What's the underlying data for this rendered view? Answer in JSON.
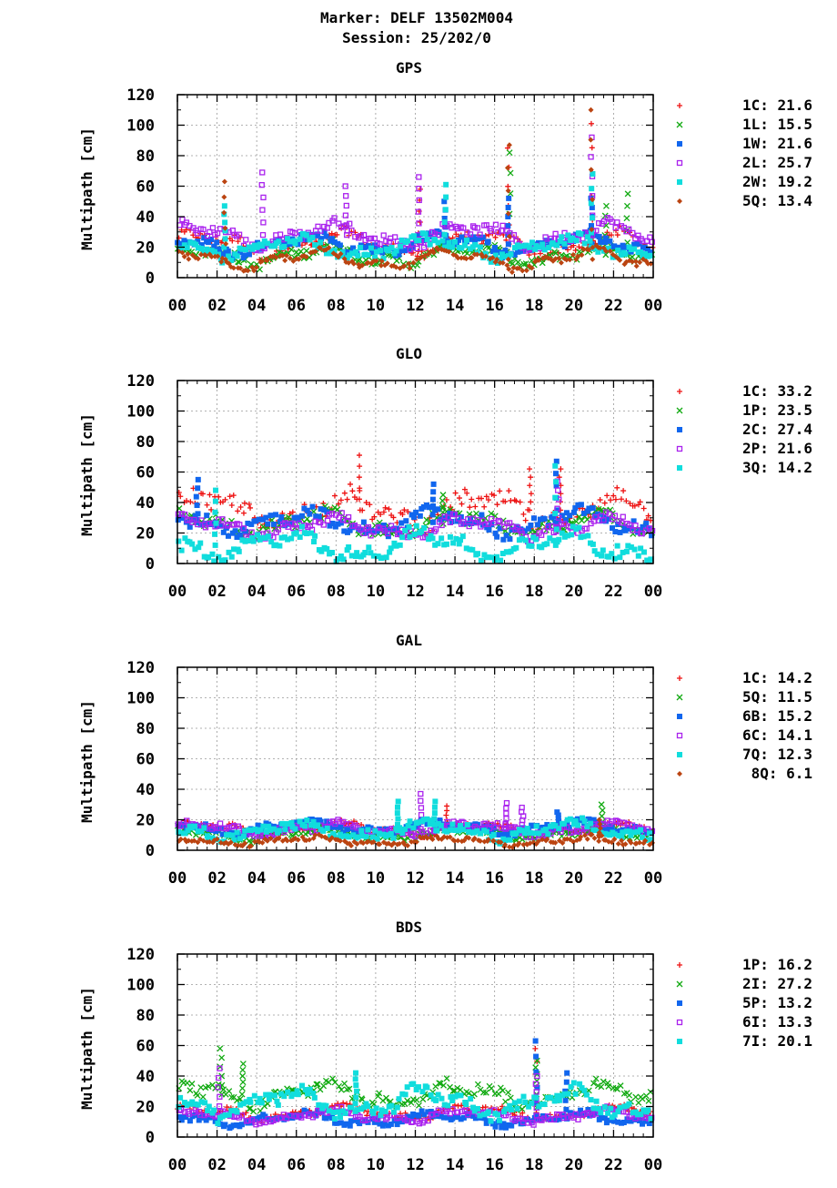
{
  "header": {
    "title_line1": "Marker: DELF 13502M004",
    "title_line2": "Session: 25/202/0"
  },
  "colors": {
    "red": "#ee1111",
    "green": "#11aa11",
    "blue": "#1166ee",
    "purple": "#aa22ee",
    "cyan": "#11dddd",
    "brown": "#bb4411"
  },
  "chart_data": [
    {
      "type": "scatter",
      "title": "GPS",
      "ylabel": "Multipath [cm]",
      "xlabel": "",
      "ylim": [
        0,
        120
      ],
      "xlim": [
        0,
        24
      ],
      "grid": true,
      "legend_position": "right",
      "x_ticks": [
        "00",
        "02",
        "04",
        "06",
        "08",
        "10",
        "12",
        "14",
        "16",
        "18",
        "20",
        "22",
        "00"
      ],
      "y_ticks": [
        "0",
        "20",
        "40",
        "60",
        "80",
        "100",
        "120"
      ],
      "series": [
        {
          "name": "1C: 21.6",
          "color": "red",
          "marker": "plus",
          "base": 22,
          "amp": 6,
          "phase": 0.4,
          "jitter": 3,
          "spikes": [
            [
              12.2,
              58
            ],
            [
              16.7,
              85
            ],
            [
              20.9,
              101
            ]
          ]
        },
        {
          "name": "1L: 15.5",
          "color": "green",
          "marker": "x",
          "base": 15,
          "amp": 5,
          "phase": 1.1,
          "jitter": 3,
          "spikes": [
            [
              16.8,
              82
            ],
            [
              21.6,
              47
            ],
            [
              22.7,
              55
            ]
          ]
        },
        {
          "name": "1W: 21.6",
          "color": "blue",
          "marker": "square",
          "base": 22,
          "amp": 5,
          "phase": 2.0,
          "jitter": 3,
          "spikes": [
            [
              13.5,
              50
            ],
            [
              20.9,
              52
            ],
            [
              16.7,
              52
            ]
          ]
        },
        {
          "name": "2L: 25.7",
          "color": "purple",
          "marker": "opensquare",
          "base": 28,
          "amp": 6,
          "phase": 0.9,
          "jitter": 3,
          "spikes": [
            [
              4.3,
              69
            ],
            [
              8.5,
              60
            ],
            [
              12.2,
              66
            ],
            [
              20.9,
              92
            ]
          ]
        },
        {
          "name": "2W: 19.2",
          "color": "cyan",
          "marker": "square",
          "base": 20,
          "amp": 5,
          "phase": 2.7,
          "jitter": 3,
          "spikes": [
            [
              2.4,
              47
            ],
            [
              13.5,
              61
            ],
            [
              20.9,
              68
            ]
          ]
        },
        {
          "name": "5Q: 13.4",
          "color": "brown",
          "marker": "diamond",
          "base": 12,
          "amp": 5,
          "phase": 1.6,
          "jitter": 2,
          "spikes": [
            [
              2.4,
              63
            ],
            [
              16.7,
              87
            ],
            [
              20.9,
              110
            ]
          ]
        }
      ]
    },
    {
      "type": "scatter",
      "title": "GLO",
      "ylabel": "Multipath [cm]",
      "xlabel": "",
      "ylim": [
        0,
        120
      ],
      "xlim": [
        0,
        24
      ],
      "grid": true,
      "legend_position": "right",
      "x_ticks": [
        "00",
        "02",
        "04",
        "06",
        "08",
        "10",
        "12",
        "14",
        "16",
        "18",
        "20",
        "22",
        "00"
      ],
      "y_ticks": [
        "0",
        "20",
        "40",
        "60",
        "80",
        "100",
        "120"
      ],
      "series": [
        {
          "name": "1C: 33.2",
          "color": "red",
          "marker": "plus",
          "base": 35,
          "amp": 8,
          "phase": 0.3,
          "jitter": 6,
          "spikes": [
            [
              9.2,
              71
            ],
            [
              17.8,
              62
            ],
            [
              19.3,
              62
            ]
          ]
        },
        {
          "name": "1P: 23.5",
          "color": "green",
          "marker": "x",
          "base": 26,
          "amp": 6,
          "phase": 1.3,
          "jitter": 4,
          "spikes": [
            [
              13.4,
              45
            ]
          ]
        },
        {
          "name": "2C: 27.4",
          "color": "blue",
          "marker": "square",
          "base": 27,
          "amp": 6,
          "phase": 2.2,
          "jitter": 4,
          "spikes": [
            [
              1.0,
              55
            ],
            [
              12.9,
              52
            ],
            [
              19.1,
              67
            ]
          ]
        },
        {
          "name": "2P: 21.6",
          "color": "purple",
          "marker": "opensquare",
          "base": 24,
          "amp": 5,
          "phase": 0.8,
          "jitter": 3,
          "spikes": [
            [
              19.2,
              54
            ]
          ]
        },
        {
          "name": "3Q: 14.2",
          "color": "cyan",
          "marker": "square",
          "base": 12,
          "amp": 7,
          "phase": 2.9,
          "jitter": 4,
          "spikes": [
            [
              1.9,
              48
            ],
            [
              19.1,
              64
            ]
          ]
        }
      ]
    },
    {
      "type": "scatter",
      "title": "GAL",
      "ylabel": "Multipath [cm]",
      "xlabel": "",
      "ylim": [
        0,
        120
      ],
      "xlim": [
        0,
        24
      ],
      "grid": true,
      "legend_position": "right",
      "x_ticks": [
        "00",
        "02",
        "04",
        "06",
        "08",
        "10",
        "12",
        "14",
        "16",
        "18",
        "20",
        "22",
        "00"
      ],
      "y_ticks": [
        "0",
        "20",
        "40",
        "60",
        "80",
        "100",
        "120"
      ],
      "series": [
        {
          "name": "1C: 14.2",
          "color": "red",
          "marker": "plus",
          "base": 14,
          "amp": 3,
          "phase": 0.5,
          "jitter": 2,
          "spikes": [
            [
              13.6,
              29
            ]
          ]
        },
        {
          "name": "5Q: 11.5",
          "color": "green",
          "marker": "x",
          "base": 11,
          "amp": 3,
          "phase": 1.4,
          "jitter": 2,
          "spikes": [
            [
              21.4,
              30
            ]
          ]
        },
        {
          "name": "6B: 15.2",
          "color": "blue",
          "marker": "square",
          "base": 15,
          "amp": 3,
          "phase": 2.1,
          "jitter": 2,
          "spikes": [
            [
              19.2,
              25
            ]
          ]
        },
        {
          "name": "6C: 14.1",
          "color": "purple",
          "marker": "opensquare",
          "base": 14,
          "amp": 3,
          "phase": 0.7,
          "jitter": 2,
          "spikes": [
            [
              12.3,
              37
            ],
            [
              16.6,
              31
            ],
            [
              17.4,
              28
            ]
          ]
        },
        {
          "name": "7Q: 12.3",
          "color": "cyan",
          "marker": "square",
          "base": 13,
          "amp": 4,
          "phase": 2.6,
          "jitter": 3,
          "spikes": [
            [
              11.1,
              32
            ],
            [
              13.0,
              32
            ]
          ]
        },
        {
          "name": "8Q:  6.1",
          "color": "brown",
          "marker": "diamond",
          "base": 6,
          "amp": 2,
          "phase": 1.8,
          "jitter": 1.5,
          "spikes": [
            [
              21.3,
              20
            ]
          ]
        }
      ]
    },
    {
      "type": "scatter",
      "title": "BDS",
      "ylabel": "Multipath [cm]",
      "xlabel": "",
      "ylim": [
        0,
        120
      ],
      "xlim": [
        0,
        24
      ],
      "grid": true,
      "legend_position": "right",
      "x_ticks": [
        "00",
        "02",
        "04",
        "06",
        "08",
        "10",
        "12",
        "14",
        "16",
        "18",
        "20",
        "22",
        "00"
      ],
      "y_ticks": [
        "0",
        "20",
        "40",
        "60",
        "80",
        "100",
        "120"
      ],
      "series": [
        {
          "name": "1P: 16.2",
          "color": "red",
          "marker": "plus",
          "base": 16,
          "amp": 3,
          "phase": 0.6,
          "jitter": 2,
          "spikes": [
            [
              18.1,
              58
            ]
          ]
        },
        {
          "name": "2I: 27.2",
          "color": "green",
          "marker": "x",
          "base": 28,
          "amp": 6,
          "phase": 1.2,
          "jitter": 4,
          "spikes": [
            [
              2.2,
              58
            ],
            [
              3.3,
              48
            ],
            [
              18.1,
              50
            ]
          ]
        },
        {
          "name": "5P: 13.2",
          "color": "blue",
          "marker": "square",
          "base": 12,
          "amp": 3,
          "phase": 2.3,
          "jitter": 2,
          "spikes": [
            [
              18.1,
              63
            ],
            [
              19.6,
              42
            ]
          ]
        },
        {
          "name": "6I: 13.3",
          "color": "purple",
          "marker": "opensquare",
          "base": 14,
          "amp": 3,
          "phase": 0.9,
          "jitter": 2,
          "spikes": [
            [
              2.1,
              45
            ],
            [
              18.1,
              40
            ]
          ]
        },
        {
          "name": "7I: 20.1",
          "color": "cyan",
          "marker": "square",
          "base": 22,
          "amp": 7,
          "phase": 2.8,
          "jitter": 4,
          "spikes": [
            [
              9.0,
              42
            ]
          ]
        }
      ]
    }
  ]
}
